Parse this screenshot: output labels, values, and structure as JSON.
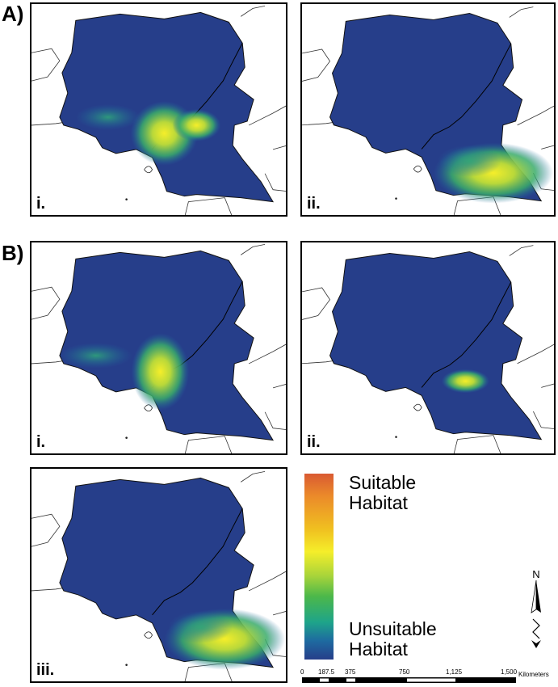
{
  "sections": [
    {
      "label": "A)"
    },
    {
      "label": "B)"
    }
  ],
  "panels": [
    {
      "label": "i.",
      "hotspot": "west"
    },
    {
      "label": "ii.",
      "hotspot": "south-east"
    },
    {
      "label": "i.",
      "hotspot": "west"
    },
    {
      "label": "ii.",
      "hotspot": "small-central"
    },
    {
      "label": "iii.",
      "hotspot": "south-east"
    }
  ],
  "legend": {
    "high_line1": "Suitable",
    "high_line2": "Habitat",
    "low_line1": "Unsuitable",
    "low_line2": "Habitat",
    "colors": [
      "#d95a32",
      "#f0c020",
      "#f5ee2a",
      "#4cb84a",
      "#1ea48a",
      "#263e8a"
    ]
  },
  "north_arrow": {
    "label": "N"
  },
  "scale_bar": {
    "ticks": [
      "0",
      "187.5",
      "375",
      "750",
      "1,125",
      "1,500"
    ],
    "unit": "Kilometers"
  }
}
